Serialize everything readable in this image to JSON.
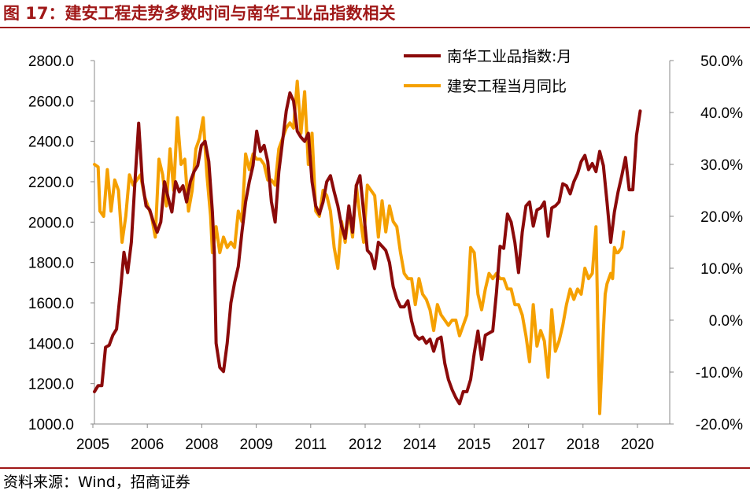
{
  "header": {
    "title": "图 17：建安工程走势多数时间与南华工业品指数相关"
  },
  "footer": {
    "source": "资料来源：Wind，招商证券"
  },
  "chart_data": {
    "type": "line",
    "title": "图 17：建安工程走势多数时间与南华工业品指数相关",
    "x_tick_labels": [
      "2005",
      "2006",
      "2008",
      "2009",
      "2011",
      "2012",
      "2014",
      "2015",
      "2017",
      "2018",
      "2020"
    ],
    "x_range": [
      2005.0,
      2020.6
    ],
    "left_axis": {
      "min": 1000,
      "max": 2800,
      "ticks": [
        1000,
        1200,
        1400,
        1600,
        1800,
        2000,
        2200,
        2400,
        2600,
        2800
      ],
      "tick_labels": [
        "1000.0",
        "1200.0",
        "1400.0",
        "1600.0",
        "1800.0",
        "2000.0",
        "2200.0",
        "2400.0",
        "2600.0",
        "2800.0"
      ]
    },
    "right_axis": {
      "min": -20,
      "max": 50,
      "ticks": [
        -20,
        -10,
        0,
        10,
        20,
        30,
        40,
        50
      ],
      "tick_labels": [
        "-20.0%",
        "-10.0%",
        "0.0%",
        "10.0%",
        "20.0%",
        "30.0%",
        "40.0%",
        "50.0%"
      ]
    },
    "legend_position": "top",
    "series": [
      {
        "name": "南华工业品指数:月",
        "axis": "left",
        "color": "#8b0a0a",
        "points": [
          [
            2005.0,
            1160
          ],
          [
            2005.1,
            1190
          ],
          [
            2005.2,
            1190
          ],
          [
            2005.3,
            1380
          ],
          [
            2005.4,
            1390
          ],
          [
            2005.5,
            1440
          ],
          [
            2005.6,
            1470
          ],
          [
            2005.7,
            1650
          ],
          [
            2005.8,
            1850
          ],
          [
            2005.9,
            1750
          ],
          [
            2006.0,
            1900
          ],
          [
            2006.1,
            2200
          ],
          [
            2006.2,
            2490
          ],
          [
            2006.3,
            2200
          ],
          [
            2006.4,
            2080
          ],
          [
            2006.5,
            2060
          ],
          [
            2006.6,
            2000
          ],
          [
            2006.7,
            1950
          ],
          [
            2006.8,
            2000
          ],
          [
            2006.9,
            2200
          ],
          [
            2007.0,
            2120
          ],
          [
            2007.1,
            2050
          ],
          [
            2007.2,
            2200
          ],
          [
            2007.3,
            2150
          ],
          [
            2007.4,
            2180
          ],
          [
            2007.5,
            2100
          ],
          [
            2007.6,
            2200
          ],
          [
            2007.7,
            2250
          ],
          [
            2007.8,
            2280
          ],
          [
            2007.9,
            2380
          ],
          [
            2008.0,
            2400
          ],
          [
            2008.1,
            2300
          ],
          [
            2008.2,
            2050
          ],
          [
            2008.25,
            1850
          ],
          [
            2008.3,
            1400
          ],
          [
            2008.4,
            1280
          ],
          [
            2008.5,
            1260
          ],
          [
            2008.6,
            1400
          ],
          [
            2008.7,
            1600
          ],
          [
            2008.8,
            1700
          ],
          [
            2008.9,
            1780
          ],
          [
            2009.0,
            1950
          ],
          [
            2009.1,
            2100
          ],
          [
            2009.2,
            2200
          ],
          [
            2009.3,
            2280
          ],
          [
            2009.4,
            2450
          ],
          [
            2009.5,
            2350
          ],
          [
            2009.6,
            2380
          ],
          [
            2009.7,
            2300
          ],
          [
            2009.8,
            2100
          ],
          [
            2009.9,
            2000
          ],
          [
            2010.0,
            2250
          ],
          [
            2010.1,
            2400
          ],
          [
            2010.2,
            2550
          ],
          [
            2010.3,
            2640
          ],
          [
            2010.4,
            2600
          ],
          [
            2010.5,
            2450
          ],
          [
            2010.6,
            2420
          ],
          [
            2010.7,
            2400
          ],
          [
            2010.8,
            2440
          ],
          [
            2010.9,
            2200
          ],
          [
            2011.0,
            2080
          ],
          [
            2011.1,
            2040
          ],
          [
            2011.2,
            2100
          ],
          [
            2011.3,
            2200
          ],
          [
            2011.4,
            2230
          ],
          [
            2011.5,
            2150
          ],
          [
            2011.6,
            2080
          ],
          [
            2011.7,
            1980
          ],
          [
            2011.8,
            1920
          ],
          [
            2011.9,
            2080
          ],
          [
            2012.0,
            1950
          ],
          [
            2012.1,
            2180
          ],
          [
            2012.2,
            2230
          ],
          [
            2012.3,
            2050
          ],
          [
            2012.4,
            1860
          ],
          [
            2012.5,
            1840
          ],
          [
            2012.6,
            1770
          ],
          [
            2012.7,
            1900
          ],
          [
            2012.8,
            1880
          ],
          [
            2012.9,
            1860
          ],
          [
            2013.0,
            1800
          ],
          [
            2013.1,
            1680
          ],
          [
            2013.2,
            1620
          ],
          [
            2013.3,
            1580
          ],
          [
            2013.4,
            1580
          ],
          [
            2013.5,
            1610
          ],
          [
            2013.6,
            1510
          ],
          [
            2013.7,
            1440
          ],
          [
            2013.8,
            1420
          ],
          [
            2013.9,
            1430
          ],
          [
            2014.0,
            1400
          ],
          [
            2014.1,
            1420
          ],
          [
            2014.2,
            1360
          ],
          [
            2014.3,
            1420
          ],
          [
            2014.4,
            1430
          ],
          [
            2014.5,
            1300
          ],
          [
            2014.6,
            1220
          ],
          [
            2014.7,
            1170
          ],
          [
            2014.8,
            1130
          ],
          [
            2014.9,
            1100
          ],
          [
            2015.0,
            1160
          ],
          [
            2015.1,
            1160
          ],
          [
            2015.2,
            1220
          ],
          [
            2015.3,
            1350
          ],
          [
            2015.4,
            1460
          ],
          [
            2015.5,
            1320
          ],
          [
            2015.6,
            1440
          ],
          [
            2015.7,
            1450
          ],
          [
            2015.8,
            1460
          ],
          [
            2015.9,
            1650
          ],
          [
            2016.0,
            1880
          ],
          [
            2016.1,
            1870
          ],
          [
            2016.2,
            2040
          ],
          [
            2016.3,
            2000
          ],
          [
            2016.4,
            1900
          ],
          [
            2016.5,
            1750
          ],
          [
            2016.6,
            1950
          ],
          [
            2016.7,
            2080
          ],
          [
            2016.8,
            2100
          ],
          [
            2016.9,
            1980
          ],
          [
            2017.0,
            2060
          ],
          [
            2017.1,
            2070
          ],
          [
            2017.2,
            2100
          ],
          [
            2017.3,
            1930
          ],
          [
            2017.4,
            2070
          ],
          [
            2017.5,
            2080
          ],
          [
            2017.6,
            2100
          ],
          [
            2017.7,
            2190
          ],
          [
            2017.8,
            2180
          ],
          [
            2017.9,
            2140
          ],
          [
            2018.0,
            2200
          ],
          [
            2018.1,
            2240
          ],
          [
            2018.2,
            2300
          ],
          [
            2018.3,
            2330
          ],
          [
            2018.4,
            2260
          ],
          [
            2018.5,
            2290
          ],
          [
            2018.6,
            2250
          ],
          [
            2018.7,
            2350
          ],
          [
            2018.8,
            2280
          ],
          [
            2018.9,
            2100
          ],
          [
            2019.0,
            1900
          ],
          [
            2019.1,
            2050
          ],
          [
            2019.2,
            2150
          ],
          [
            2019.3,
            2230
          ],
          [
            2019.4,
            2320
          ],
          [
            2019.5,
            2160
          ],
          [
            2019.6,
            2160
          ],
          [
            2019.7,
            2430
          ],
          [
            2019.8,
            2550
          ]
        ]
      },
      {
        "name": "建安工程当月同比",
        "axis": "right",
        "color": "#f5a000",
        "points": [
          [
            2005.0,
            30
          ],
          [
            2005.1,
            29.5
          ],
          [
            2005.15,
            21
          ],
          [
            2005.25,
            20
          ],
          [
            2005.35,
            29
          ],
          [
            2005.45,
            21
          ],
          [
            2005.55,
            27
          ],
          [
            2005.65,
            25
          ],
          [
            2005.75,
            15
          ],
          [
            2005.85,
            20
          ],
          [
            2005.95,
            28
          ],
          [
            2006.05,
            26
          ],
          [
            2006.15,
            27
          ],
          [
            2006.25,
            28
          ],
          [
            2006.35,
            24
          ],
          [
            2006.45,
            22
          ],
          [
            2006.55,
            20
          ],
          [
            2006.65,
            16
          ],
          [
            2006.75,
            31
          ],
          [
            2006.85,
            28
          ],
          [
            2006.95,
            22
          ],
          [
            2007.05,
            33
          ],
          [
            2007.15,
            25
          ],
          [
            2007.25,
            39
          ],
          [
            2007.35,
            30
          ],
          [
            2007.45,
            31
          ],
          [
            2007.55,
            21
          ],
          [
            2007.65,
            25
          ],
          [
            2007.75,
            33
          ],
          [
            2007.85,
            35
          ],
          [
            2007.95,
            39
          ],
          [
            2008.05,
            28
          ],
          [
            2008.15,
            20
          ],
          [
            2008.2,
            13
          ],
          [
            2008.3,
            18
          ],
          [
            2008.4,
            13
          ],
          [
            2008.5,
            16
          ],
          [
            2008.6,
            14
          ],
          [
            2008.7,
            15
          ],
          [
            2008.8,
            14
          ],
          [
            2008.9,
            21
          ],
          [
            2009.0,
            19
          ],
          [
            2009.1,
            32
          ],
          [
            2009.2,
            29
          ],
          [
            2009.3,
            32
          ],
          [
            2009.4,
            31
          ],
          [
            2009.5,
            31
          ],
          [
            2009.6,
            30
          ],
          [
            2009.7,
            27
          ],
          [
            2009.8,
            27
          ],
          [
            2009.9,
            26
          ],
          [
            2010.0,
            33
          ],
          [
            2010.1,
            35
          ],
          [
            2010.2,
            37
          ],
          [
            2010.3,
            38
          ],
          [
            2010.4,
            37
          ],
          [
            2010.5,
            46
          ],
          [
            2010.6,
            36
          ],
          [
            2010.7,
            44
          ],
          [
            2010.8,
            30
          ],
          [
            2010.9,
            36
          ],
          [
            2011.0,
            21
          ],
          [
            2011.1,
            20
          ],
          [
            2011.2,
            25
          ],
          [
            2011.3,
            24
          ],
          [
            2011.4,
            21
          ],
          [
            2011.5,
            14
          ],
          [
            2011.6,
            10
          ],
          [
            2011.7,
            19
          ],
          [
            2011.8,
            15
          ],
          [
            2011.9,
            21
          ],
          [
            2012.0,
            16
          ],
          [
            2012.1,
            26
          ],
          [
            2012.2,
            20
          ],
          [
            2012.3,
            15
          ],
          [
            2012.4,
            26
          ],
          [
            2012.5,
            25
          ],
          [
            2012.6,
            24
          ],
          [
            2012.7,
            16
          ],
          [
            2012.8,
            23
          ],
          [
            2012.9,
            17
          ],
          [
            2013.0,
            22
          ],
          [
            2013.1,
            19
          ],
          [
            2013.2,
            18
          ],
          [
            2013.3,
            13
          ],
          [
            2013.4,
            9
          ],
          [
            2013.5,
            8
          ],
          [
            2013.6,
            8
          ],
          [
            2013.7,
            3
          ],
          [
            2013.8,
            8
          ],
          [
            2013.9,
            5
          ],
          [
            2014.0,
            4
          ],
          [
            2014.1,
            2
          ],
          [
            2014.2,
            -2
          ],
          [
            2014.3,
            3
          ],
          [
            2014.4,
            1
          ],
          [
            2014.5,
            0
          ],
          [
            2014.6,
            -1
          ],
          [
            2014.7,
            0
          ],
          [
            2014.8,
            0
          ],
          [
            2014.9,
            -3
          ],
          [
            2015.0,
            -1
          ],
          [
            2015.1,
            1
          ],
          [
            2015.2,
            14
          ],
          [
            2015.3,
            13
          ],
          [
            2015.4,
            5
          ],
          [
            2015.5,
            2
          ],
          [
            2015.6,
            6
          ],
          [
            2015.7,
            9
          ],
          [
            2015.8,
            8
          ],
          [
            2015.9,
            9
          ],
          [
            2016.0,
            8
          ],
          [
            2016.1,
            8
          ],
          [
            2016.2,
            6
          ],
          [
            2016.3,
            6
          ],
          [
            2016.4,
            3
          ],
          [
            2016.5,
            3
          ],
          [
            2016.6,
            1
          ],
          [
            2016.7,
            -3
          ],
          [
            2016.8,
            -8
          ],
          [
            2016.9,
            3
          ],
          [
            2017.0,
            -5
          ],
          [
            2017.1,
            -2
          ],
          [
            2017.2,
            -4
          ],
          [
            2017.3,
            -11
          ],
          [
            2017.4,
            2
          ],
          [
            2017.5,
            -6
          ],
          [
            2017.6,
            -4
          ],
          [
            2017.7,
            -1
          ],
          [
            2017.8,
            3
          ],
          [
            2017.9,
            6
          ],
          [
            2018.0,
            4
          ],
          [
            2018.1,
            6
          ],
          [
            2018.2,
            5
          ],
          [
            2018.3,
            10
          ],
          [
            2018.4,
            8
          ],
          [
            2018.5,
            9
          ],
          [
            2018.6,
            18
          ],
          [
            2018.65,
            0
          ],
          [
            2018.7,
            -18
          ],
          [
            2018.8,
            -2
          ],
          [
            2018.85,
            5
          ],
          [
            2018.9,
            7
          ],
          [
            2019.0,
            9
          ],
          [
            2019.05,
            8
          ],
          [
            2019.1,
            14
          ],
          [
            2019.15,
            13
          ],
          [
            2019.2,
            13
          ],
          [
            2019.3,
            14
          ],
          [
            2019.35,
            17
          ]
        ]
      }
    ]
  }
}
